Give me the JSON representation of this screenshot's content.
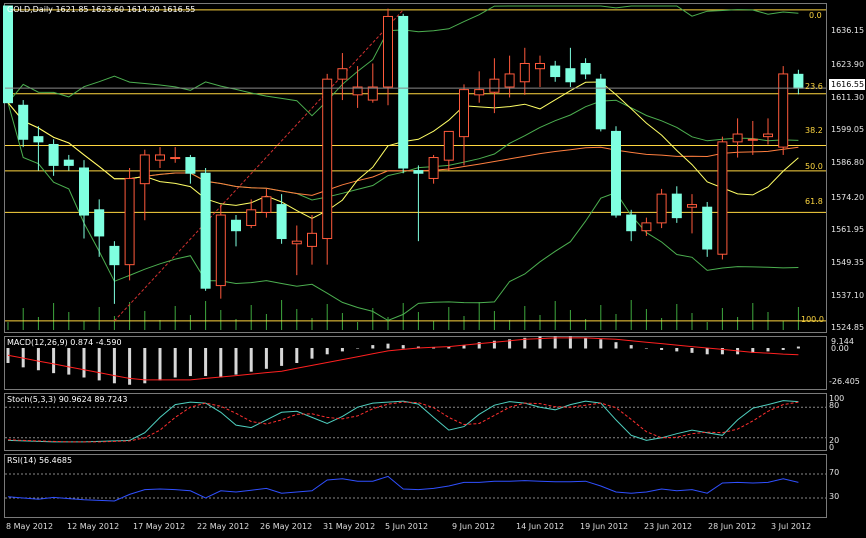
{
  "main": {
    "title": "GOLD,Daily  1621.85 1623.60 1614.20 1616.55",
    "price_axis": [
      "1636.15",
      "1623.90",
      "1611.30",
      "1599.05",
      "1586.80",
      "1574.20",
      "1561.95",
      "1549.35",
      "1537.10",
      "1524.85"
    ],
    "current_price": "1616.55",
    "fib_levels": [
      {
        "label": "0.0",
        "price": 1646.5
      },
      {
        "label": "23.6",
        "price": 1614.4
      },
      {
        "label": "38.2",
        "price": 1594.6
      },
      {
        "label": "50.0",
        "price": 1584.9
      },
      {
        "label": "61.8",
        "price": 1569.0
      },
      {
        "label": "100.0",
        "price": 1527.5
      }
    ]
  },
  "macd": {
    "title": "MACD(12,26,9) 0.874 -4.590",
    "axis": [
      "9.144",
      "0.00",
      "-26.405"
    ]
  },
  "stoch": {
    "title": "Stoch(5,3,3) 90.9624 89.7243",
    "axis": [
      "100",
      "80",
      "20",
      "0"
    ]
  },
  "rsi": {
    "title": "RSI(14) 56.4685",
    "axis": [
      "70",
      "30"
    ]
  },
  "dates": [
    "8 May 2012",
    "12 May 2012",
    "17 May 2012",
    "22 May 2012",
    "26 May 2012",
    "31 May 2012",
    "5 Jun 2012",
    "9 Jun 2012",
    "14 Jun 2012",
    "19 Jun 2012",
    "23 Jun 2012",
    "28 Jun 2012",
    "3 Jul 2012"
  ],
  "colors": {
    "bull": "#7fffe0",
    "bear": "#ff5a3c",
    "fib": "#ffd740",
    "bollinger": "#4caf50",
    "ma_orange": "#ff7f3f",
    "ma_yellow": "#ffff66",
    "macd_signal": "#ff2020",
    "rsi": "#3050ff"
  },
  "chart_data": {
    "type": "candlestick",
    "candles": [
      {
        "o": 1650,
        "h": 1654,
        "l": 1612,
        "c": 1611
      },
      {
        "o": 1610,
        "h": 1612,
        "l": 1594,
        "c": 1597
      },
      {
        "o": 1598,
        "h": 1602,
        "l": 1585,
        "c": 1596
      },
      {
        "o": 1595,
        "h": 1597,
        "l": 1583,
        "c": 1587
      },
      {
        "o": 1589,
        "h": 1591,
        "l": 1585,
        "c": 1587
      },
      {
        "o": 1586,
        "h": 1589,
        "l": 1559,
        "c": 1568
      },
      {
        "o": 1570,
        "h": 1574,
        "l": 1552,
        "c": 1560
      },
      {
        "o": 1556,
        "h": 1558,
        "l": 1534,
        "c": 1549
      },
      {
        "o": 1549,
        "h": 1586,
        "l": 1543,
        "c": 1582
      },
      {
        "o": 1580,
        "h": 1593,
        "l": 1566,
        "c": 1591
      },
      {
        "o": 1589,
        "h": 1594,
        "l": 1586,
        "c": 1591
      },
      {
        "o": 1590,
        "h": 1594,
        "l": 1588,
        "c": 1590
      },
      {
        "o": 1590,
        "h": 1591,
        "l": 1580,
        "c": 1584
      },
      {
        "o": 1584,
        "h": 1586,
        "l": 1539,
        "c": 1540
      },
      {
        "o": 1541,
        "h": 1572,
        "l": 1536,
        "c": 1568
      },
      {
        "o": 1566,
        "h": 1568,
        "l": 1556,
        "c": 1562
      },
      {
        "o": 1564,
        "h": 1574,
        "l": 1563,
        "c": 1570
      },
      {
        "o": 1569,
        "h": 1578,
        "l": 1567,
        "c": 1575
      },
      {
        "o": 1572,
        "h": 1576,
        "l": 1557,
        "c": 1559
      },
      {
        "o": 1557,
        "h": 1564,
        "l": 1545,
        "c": 1558
      },
      {
        "o": 1556,
        "h": 1568,
        "l": 1549,
        "c": 1561
      },
      {
        "o": 1559,
        "h": 1622,
        "l": 1549,
        "c": 1620
      },
      {
        "o": 1620,
        "h": 1630,
        "l": 1612,
        "c": 1624
      },
      {
        "o": 1614,
        "h": 1625,
        "l": 1609,
        "c": 1617
      },
      {
        "o": 1612,
        "h": 1626,
        "l": 1611,
        "c": 1617
      },
      {
        "o": 1617,
        "h": 1647,
        "l": 1610,
        "c": 1644
      },
      {
        "o": 1644,
        "h": 1645,
        "l": 1584,
        "c": 1586
      },
      {
        "o": 1585,
        "h": 1587,
        "l": 1558,
        "c": 1584
      },
      {
        "o": 1582,
        "h": 1591,
        "l": 1580,
        "c": 1590
      },
      {
        "o": 1589,
        "h": 1600,
        "l": 1585,
        "c": 1600
      },
      {
        "o": 1598,
        "h": 1618,
        "l": 1587,
        "c": 1616
      },
      {
        "o": 1614,
        "h": 1623,
        "l": 1611,
        "c": 1616
      },
      {
        "o": 1615,
        "h": 1628,
        "l": 1607,
        "c": 1620
      },
      {
        "o": 1617,
        "h": 1629,
        "l": 1613,
        "c": 1622
      },
      {
        "o": 1619,
        "h": 1632,
        "l": 1614,
        "c": 1626
      },
      {
        "o": 1624,
        "h": 1629,
        "l": 1617,
        "c": 1626
      },
      {
        "o": 1625,
        "h": 1627,
        "l": 1619,
        "c": 1621
      },
      {
        "o": 1624,
        "h": 1632,
        "l": 1617,
        "c": 1619
      },
      {
        "o": 1626,
        "h": 1628,
        "l": 1620,
        "c": 1622
      },
      {
        "o": 1620,
        "h": 1622,
        "l": 1600,
        "c": 1601
      },
      {
        "o": 1600,
        "h": 1602,
        "l": 1567,
        "c": 1568
      },
      {
        "o": 1568,
        "h": 1570,
        "l": 1558,
        "c": 1562
      },
      {
        "o": 1562,
        "h": 1567,
        "l": 1560,
        "c": 1565
      },
      {
        "o": 1565,
        "h": 1578,
        "l": 1563,
        "c": 1576
      },
      {
        "o": 1576,
        "h": 1579,
        "l": 1565,
        "c": 1567
      },
      {
        "o": 1571,
        "h": 1576,
        "l": 1561,
        "c": 1572
      },
      {
        "o": 1571,
        "h": 1573,
        "l": 1552,
        "c": 1555
      },
      {
        "o": 1553,
        "h": 1598,
        "l": 1551,
        "c": 1596
      },
      {
        "o": 1596,
        "h": 1605,
        "l": 1590,
        "c": 1599
      },
      {
        "o": 1597,
        "h": 1604,
        "l": 1591,
        "c": 1597
      },
      {
        "o": 1598,
        "h": 1605,
        "l": 1595,
        "c": 1599
      },
      {
        "o": 1594,
        "h": 1625,
        "l": 1591,
        "c": 1622
      },
      {
        "o": 1621.85,
        "h": 1623.6,
        "l": 1614.2,
        "c": 1616.55
      }
    ],
    "ylim": [
      1524,
      1648
    ],
    "macd_hist": [
      -10,
      -13,
      -15,
      -17,
      -18,
      -20,
      -22,
      -24,
      -25,
      -24,
      -22,
      -20,
      -19,
      -19,
      -20,
      -18,
      -16,
      -14,
      -12,
      -10,
      -7,
      -4,
      -2,
      0,
      2,
      3,
      2,
      1,
      0.5,
      1,
      2,
      4,
      5,
      6,
      7,
      8,
      8,
      8,
      7,
      6,
      4,
      2,
      0,
      -1,
      -2,
      -3,
      -4,
      -4,
      -4,
      -3,
      -2,
      -1,
      1
    ],
    "macd_signal": [
      -5,
      -7,
      -9,
      -11,
      -13,
      -15,
      -17,
      -19,
      -21,
      -22,
      -22,
      -22,
      -22,
      -21,
      -20,
      -19,
      -18,
      -17,
      -16,
      -14,
      -12,
      -10,
      -8,
      -6,
      -4,
      -2,
      -1,
      0,
      0.5,
      1,
      2,
      3,
      4,
      5,
      6,
      6.5,
      7,
      7,
      7,
      6.5,
      6,
      5,
      4,
      3,
      2,
      1,
      0,
      -1,
      -2,
      -3,
      -3.5,
      -4.2,
      -4.6
    ],
    "stoch_k": [
      15,
      14,
      13,
      12,
      12,
      12,
      13,
      14,
      15,
      30,
      60,
      85,
      90,
      88,
      70,
      45,
      40,
      55,
      70,
      72,
      60,
      48,
      62,
      80,
      88,
      90,
      92,
      86,
      60,
      35,
      42,
      66,
      84,
      91,
      88,
      80,
      75,
      85,
      92,
      88,
      55,
      25,
      15,
      20,
      28,
      35,
      30,
      25,
      55,
      78,
      85,
      93,
      91
    ],
    "stoch_d": [
      16,
      15,
      14,
      13,
      12,
      12,
      12,
      13,
      14,
      20,
      35,
      60,
      80,
      88,
      82,
      68,
      52,
      47,
      55,
      66,
      67,
      60,
      57,
      63,
      77,
      86,
      90,
      89,
      79,
      60,
      46,
      48,
      64,
      80,
      88,
      87,
      81,
      80,
      84,
      88,
      79,
      56,
      32,
      20,
      21,
      28,
      31,
      30,
      37,
      53,
      72,
      85,
      90
    ],
    "rsi": [
      32,
      30,
      28,
      31,
      29,
      27,
      26,
      25,
      36,
      44,
      45,
      44,
      42,
      30,
      42,
      40,
      43,
      46,
      38,
      40,
      42,
      60,
      62,
      58,
      58,
      66,
      45,
      44,
      46,
      50,
      56,
      56,
      58,
      58,
      59,
      58,
      57,
      57,
      58,
      50,
      40,
      38,
      40,
      45,
      42,
      44,
      38,
      55,
      56,
      55,
      56,
      62,
      56
    ]
  }
}
